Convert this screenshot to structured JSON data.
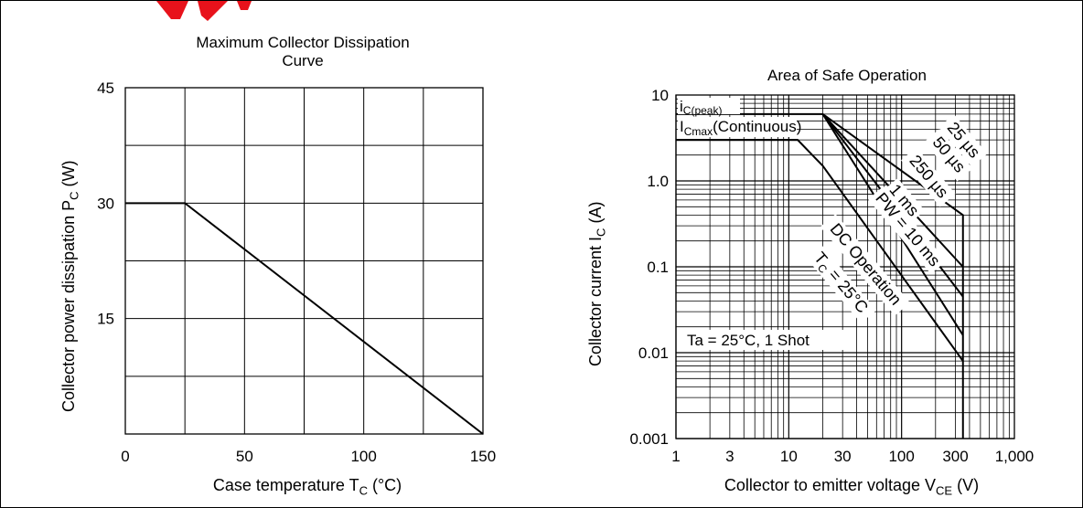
{
  "charts": {
    "left": {
      "title_line1": "Maximum Collector Dissipation",
      "title_line2": "Curve",
      "ylabel_main": "Collector power dissipation  P",
      "ylabel_sub": "C",
      "ylabel_unit": "  (W)",
      "xlabel_main": "Case temperature  T",
      "xlabel_sub": "C",
      "xlabel_unit": "  (°C)"
    },
    "right": {
      "title": "Area of Safe Operation",
      "ylabel_main": "Collector current  I",
      "ylabel_sub": "C",
      "ylabel_unit": "  (A)",
      "xlabel_main": "Collector to emitter voltage  V",
      "xlabel_sub": "CE",
      "xlabel_unit": "  (V)",
      "annotation_peak_main": "i",
      "annotation_peak_sub": "C(peak)",
      "annotation_cont_main": "I",
      "annotation_cont_sub": "Cmax",
      "annotation_cont_tail": "(Continuous)",
      "annotation_conditions": "Ta = 25°C, 1 Shot",
      "label_25us": "25 µs",
      "label_50us": "50 µs",
      "label_250us": "250 µs",
      "label_1ms": "1 ms",
      "label_pw10ms": "PW = 10 ms",
      "label_dc": "DC Operation",
      "label_tc_main": "T",
      "label_tc_sub": "C",
      "label_tc_tail": " = 25°C"
    }
  },
  "colors": {
    "logo": "#e8121b",
    "line": "#000000"
  },
  "chart_data": [
    {
      "type": "line",
      "title": "Maximum Collector Dissipation Curve",
      "xlabel": "Case temperature  TC  (°C)",
      "ylabel": "Collector power dissipation  PC  (W)",
      "xlim": [
        0,
        150
      ],
      "ylim": [
        0,
        45
      ],
      "x_ticks": [
        0,
        50,
        100,
        150
      ],
      "x_tick_labels": [
        "0",
        "50",
        "100",
        "150"
      ],
      "y_ticks": [
        15,
        30,
        45
      ],
      "y_tick_labels": [
        "15",
        "30",
        "45"
      ],
      "grid": true,
      "series": [
        {
          "x": [
            0,
            25,
            150
          ],
          "y": [
            30,
            30,
            0
          ]
        }
      ]
    },
    {
      "type": "line",
      "title": "Area of Safe Operation",
      "xlabel": "Collector to emitter voltage  VCE  (V)",
      "ylabel": "Collector current  IC  (A)",
      "x_scale": "log",
      "y_scale": "log",
      "xlim": [
        1,
        1000
      ],
      "ylim": [
        0.001,
        10
      ],
      "x_ticks": [
        1,
        3,
        10,
        30,
        100,
        300,
        1000
      ],
      "x_tick_labels": [
        "1",
        "3",
        "10",
        "30",
        "100",
        "300",
        "1,000"
      ],
      "y_ticks": [
        0.001,
        0.01,
        0.1,
        1,
        10
      ],
      "y_tick_labels": [
        "0.001",
        "0.01",
        "0.1",
        "1.0",
        "10"
      ],
      "grid": true,
      "series": [
        {
          "name": "iC(peak)",
          "x": [
            1,
            20
          ],
          "y": [
            6,
            6
          ]
        },
        {
          "name": "ICmax(Continuous)",
          "x": [
            1,
            12
          ],
          "y": [
            3,
            3
          ]
        },
        {
          "name": "25 µs",
          "x": [
            20,
            350,
            350
          ],
          "y": [
            6,
            0.4,
            0.001
          ]
        },
        {
          "name": "50 µs",
          "x": [
            20,
            350
          ],
          "y": [
            6,
            0.1
          ]
        },
        {
          "name": "250 µs",
          "x": [
            20,
            350
          ],
          "y": [
            6,
            0.045
          ]
        },
        {
          "name": "1 ms",
          "x": [
            20,
            350
          ],
          "y": [
            6,
            0.016
          ]
        },
        {
          "name": "PW = 10 ms",
          "x": [
            1,
            12,
            20,
            350
          ],
          "y": [
            3,
            3,
            1.5,
            0.008
          ]
        }
      ]
    }
  ]
}
